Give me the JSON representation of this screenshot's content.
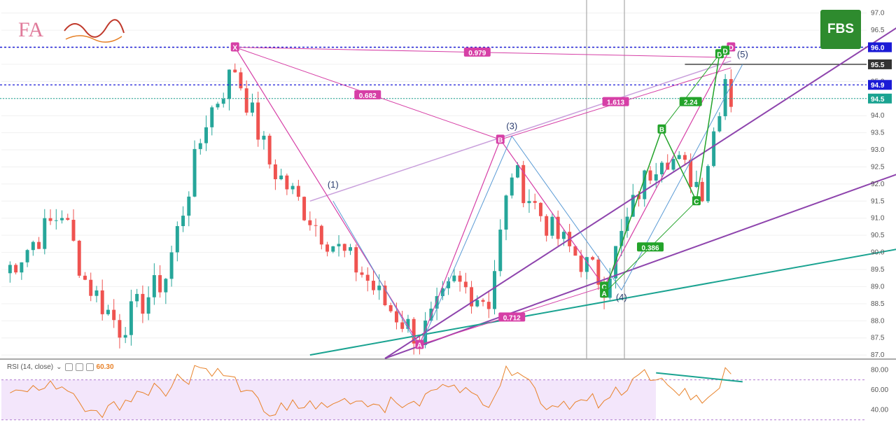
{
  "logos": {
    "fbs": "FBS",
    "fa_text": "FA"
  },
  "indicator": {
    "name": "RSI (14, close)",
    "value": "60.30"
  },
  "colors": {
    "bull": "#26a69a",
    "bear": "#ef5350",
    "pink": "#d63fa6",
    "green": "#23a32a",
    "purple": "#8e44ad",
    "teal": "#1aa391",
    "blue_dash": "#1b1bd6",
    "rsi": "#e8822a"
  },
  "chart_data": {
    "type": "line",
    "y_axis_ticks": [
      97.0,
      96.5,
      96.0,
      95.5,
      95.0,
      94.5,
      94.0,
      93.5,
      93.0,
      92.5,
      92.0,
      91.5,
      91.0,
      90.5,
      90.0,
      89.5,
      89.0,
      88.5,
      88.0,
      87.5,
      87.0
    ],
    "y_tick_labels": [
      "97.0",
      "96.5",
      "96.0",
      "95.5",
      "95.0",
      "94.5",
      "94.0",
      "93.5",
      "93.0",
      "92.5",
      "92.0",
      "91.5",
      "91.0",
      "90.5",
      "90.0",
      "89.5",
      "89.0",
      "88.5",
      "88.0",
      "87.5",
      "87.0"
    ],
    "ylim": [
      86.9,
      97.3
    ],
    "price_tags": [
      {
        "label": "96.0",
        "value": 96.0,
        "color": "#1b1bd6"
      },
      {
        "label": "95.5",
        "value": 95.5,
        "color": "#333333"
      },
      {
        "label": "94.9",
        "value": 94.9,
        "color": "#1b1bd6"
      },
      {
        "label": "94.5",
        "value": 94.5,
        "color": "#1aa391"
      }
    ],
    "rsi_ticks": [
      "80.00",
      "60.00",
      "40.00"
    ],
    "rsi_ticks_values": [
      80,
      60,
      40
    ],
    "rsi_band": [
      70,
      30
    ],
    "harmonic_points": [
      {
        "label": "X",
        "bar": 40,
        "value": 96.0,
        "color": "#d63fa6"
      },
      {
        "label": "A",
        "bar": 72,
        "value": 87.3,
        "color": "#d63fa6"
      },
      {
        "label": "B",
        "bar": 86,
        "value": 93.3,
        "color": "#d63fa6"
      },
      {
        "label": "C",
        "bar": 104,
        "value": 89.0,
        "color": "#23a32a"
      },
      {
        "label": "D",
        "bar": 126,
        "value": 96.0,
        "color": "#d63fa6"
      },
      {
        "label": "A",
        "bar": 104,
        "value": 88.8,
        "color": "#23a32a"
      },
      {
        "label": "B",
        "bar": 114,
        "value": 93.6,
        "color": "#23a32a"
      },
      {
        "label": "C",
        "bar": 120,
        "value": 91.5,
        "color": "#23a32a"
      },
      {
        "label": "D",
        "bar": 124,
        "value": 95.8,
        "color": "#23a32a"
      },
      {
        "label": "D",
        "bar": 125,
        "value": 95.9,
        "color": "#23a32a"
      }
    ],
    "ratios": [
      {
        "label": "0.979",
        "bar": 82,
        "value": 95.85,
        "color": "#d63fa6"
      },
      {
        "label": "0.682",
        "bar": 63,
        "value": 94.6,
        "color": "#d63fa6"
      },
      {
        "label": "1.613",
        "bar": 106,
        "value": 94.4,
        "color": "#d63fa6"
      },
      {
        "label": "0.712",
        "bar": 88,
        "value": 88.1,
        "color": "#d63fa6"
      },
      {
        "label": "2.24",
        "bar": 119,
        "value": 94.4,
        "color": "#23a32a"
      },
      {
        "label": "0.386",
        "bar": 112,
        "value": 90.15,
        "color": "#23a32a"
      }
    ],
    "waves": [
      {
        "label": "(1)",
        "bar": 57,
        "value": 91.9
      },
      {
        "label": "(3)",
        "bar": 88,
        "value": 93.6
      },
      {
        "label": "(4)",
        "bar": 107,
        "value": 88.6
      },
      {
        "label": "(5)",
        "bar": 128,
        "value": 95.7
      }
    ]
  }
}
